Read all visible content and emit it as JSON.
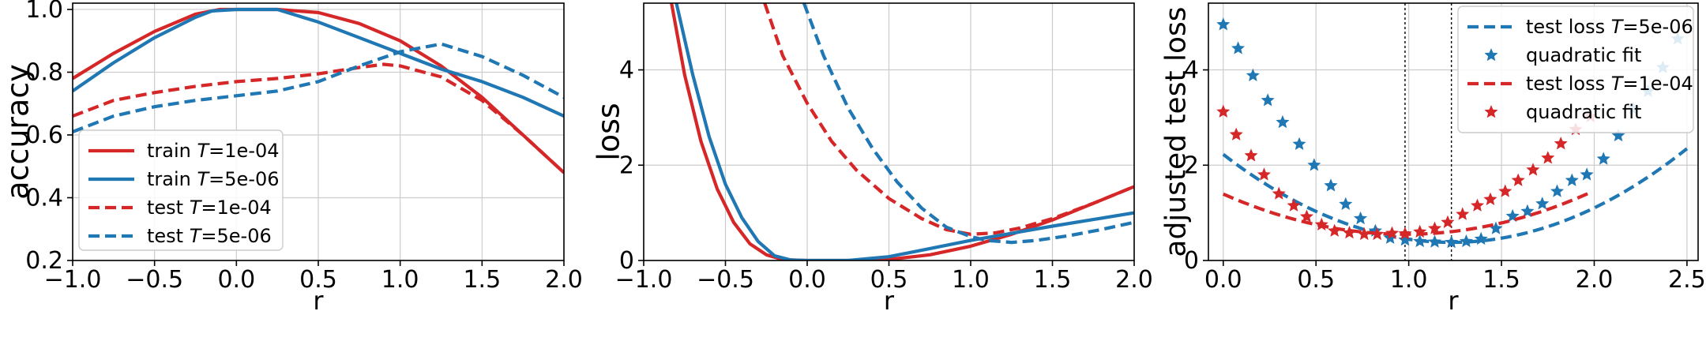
{
  "colors": {
    "red": "#d62728",
    "blue": "#1f77b4",
    "grid": "#cccccc"
  },
  "chart_data": [
    {
      "type": "line",
      "xlabel": "r",
      "ylabel": "accuracy",
      "xlim": [
        -1.0,
        2.0
      ],
      "ylim": [
        0.2,
        1.02
      ],
      "xticks": [
        -1.0,
        -0.5,
        0.0,
        0.5,
        1.0,
        1.5,
        2.0
      ],
      "xtick_labels": [
        "−1.0",
        "−0.5",
        "0.0",
        "0.5",
        "1.0",
        "1.5",
        "2.0"
      ],
      "yticks": [
        0.2,
        0.4,
        0.6,
        0.8,
        1.0
      ],
      "ytick_labels": [
        "0.2",
        "0.4",
        "0.6",
        "0.8",
        "1.0"
      ],
      "grid": true,
      "legend": "lower-left",
      "series": [
        {
          "name": "train T=1e-04",
          "name_pre": "train ",
          "name_italic": "T",
          "name_post": "=1e-04",
          "color": "#d62728",
          "style": "solid",
          "x": [
            -1.0,
            -0.75,
            -0.5,
            -0.25,
            -0.1,
            0.0,
            0.25,
            0.5,
            0.75,
            1.0,
            1.25,
            1.5,
            1.75,
            2.0
          ],
          "y": [
            0.78,
            0.86,
            0.93,
            0.985,
            1.0,
            1.0,
            1.0,
            0.99,
            0.955,
            0.9,
            0.82,
            0.72,
            0.6,
            0.48
          ]
        },
        {
          "name": "train T=5e-06",
          "name_pre": "train ",
          "name_italic": "T",
          "name_post": "=5e-06",
          "color": "#1f77b4",
          "style": "solid",
          "x": [
            -1.0,
            -0.75,
            -0.5,
            -0.25,
            -0.15,
            0.0,
            0.25,
            0.5,
            0.75,
            1.0,
            1.25,
            1.5,
            1.75,
            2.0
          ],
          "y": [
            0.74,
            0.83,
            0.91,
            0.975,
            0.995,
            1.0,
            1.0,
            0.96,
            0.91,
            0.86,
            0.81,
            0.77,
            0.72,
            0.66
          ]
        },
        {
          "name": "test T=1e-04",
          "name_pre": "test ",
          "name_italic": "T",
          "name_post": "=1e-04",
          "color": "#d62728",
          "style": "dashed",
          "x": [
            -1.0,
            -0.75,
            -0.5,
            -0.25,
            0.0,
            0.25,
            0.5,
            0.75,
            0.9,
            1.0,
            1.25,
            1.5,
            1.75,
            2.0
          ],
          "y": [
            0.66,
            0.71,
            0.735,
            0.755,
            0.77,
            0.78,
            0.795,
            0.815,
            0.825,
            0.82,
            0.785,
            0.71,
            0.6,
            0.48
          ]
        },
        {
          "name": "test T=5e-06",
          "name_pre": "test ",
          "name_italic": "T",
          "name_post": "=5e-06",
          "color": "#1f77b4",
          "style": "dashed",
          "x": [
            -1.0,
            -0.75,
            -0.5,
            -0.25,
            0.0,
            0.25,
            0.5,
            0.75,
            1.0,
            1.25,
            1.5,
            1.75,
            2.0
          ],
          "y": [
            0.61,
            0.66,
            0.69,
            0.71,
            0.725,
            0.74,
            0.77,
            0.82,
            0.865,
            0.89,
            0.85,
            0.79,
            0.72
          ]
        }
      ]
    },
    {
      "type": "line",
      "xlabel": "r",
      "ylabel": "loss",
      "xlim": [
        -1.0,
        2.0
      ],
      "ylim": [
        0,
        5.4
      ],
      "xticks": [
        -1.0,
        -0.5,
        0.0,
        0.5,
        1.0,
        1.5,
        2.0
      ],
      "xtick_labels": [
        "−1.0",
        "−0.5",
        "0.0",
        "0.5",
        "1.0",
        "1.5",
        "2.0"
      ],
      "yticks": [
        0,
        2,
        4
      ],
      "ytick_labels": [
        "0",
        "2",
        "4"
      ],
      "grid": true,
      "series": [
        {
          "name": "train T=1e-04",
          "color": "#d62728",
          "style": "solid",
          "x": [
            -0.83,
            -0.75,
            -0.65,
            -0.55,
            -0.45,
            -0.35,
            -0.25,
            -0.15,
            0.0,
            0.25,
            0.5,
            0.75,
            1.0,
            1.25,
            1.5,
            1.75,
            2.0
          ],
          "y": [
            5.4,
            3.9,
            2.5,
            1.5,
            0.8,
            0.35,
            0.12,
            0.02,
            0.0,
            0.0,
            0.02,
            0.12,
            0.3,
            0.55,
            0.85,
            1.2,
            1.55
          ]
        },
        {
          "name": "train T=5e-06",
          "color": "#1f77b4",
          "style": "solid",
          "x": [
            -0.8,
            -0.7,
            -0.6,
            -0.5,
            -0.4,
            -0.3,
            -0.2,
            -0.1,
            0.0,
            0.25,
            0.5,
            0.75,
            1.0,
            1.25,
            1.5,
            1.75,
            2.0
          ],
          "y": [
            5.4,
            3.9,
            2.6,
            1.6,
            0.9,
            0.4,
            0.1,
            0.01,
            0.0,
            0.0,
            0.08,
            0.25,
            0.42,
            0.57,
            0.72,
            0.86,
            1.0
          ]
        },
        {
          "name": "test T=1e-04",
          "color": "#d62728",
          "style": "dashed",
          "x": [
            -0.26,
            -0.15,
            0.0,
            0.15,
            0.3,
            0.5,
            0.7,
            0.85,
            1.0,
            1.15,
            1.3,
            1.5,
            1.75,
            2.0
          ],
          "y": [
            5.4,
            4.3,
            3.3,
            2.5,
            1.9,
            1.3,
            0.88,
            0.65,
            0.55,
            0.58,
            0.68,
            0.88,
            1.2,
            1.55
          ]
        },
        {
          "name": "test T=5e-06",
          "color": "#1f77b4",
          "style": "dashed",
          "x": [
            -0.02,
            0.1,
            0.25,
            0.4,
            0.55,
            0.7,
            0.85,
            1.0,
            1.1,
            1.25,
            1.4,
            1.6,
            1.8,
            2.0
          ],
          "y": [
            5.4,
            4.3,
            3.2,
            2.35,
            1.65,
            1.1,
            0.7,
            0.5,
            0.42,
            0.38,
            0.42,
            0.52,
            0.65,
            0.8
          ]
        }
      ]
    },
    {
      "type": "line",
      "xlabel": "r",
      "ylabel": "adjusted test loss",
      "xlim": [
        -0.08,
        2.56
      ],
      "ylim": [
        0,
        5.4
      ],
      "xticks": [
        0.0,
        0.5,
        1.0,
        1.5,
        2.0,
        2.5
      ],
      "xtick_labels": [
        "0.0",
        "0.5",
        "1.0",
        "1.5",
        "2.0",
        "2.5"
      ],
      "yticks": [
        0,
        2,
        4
      ],
      "ytick_labels": [
        "0",
        "2",
        "4"
      ],
      "grid": true,
      "legend": "top-right",
      "vlines": [
        0.98,
        1.23
      ],
      "series": [
        {
          "name": "test loss T=5e-06",
          "name_pre": "test loss ",
          "name_italic": "T",
          "name_post": "=5e-06",
          "color": "#1f77b4",
          "style": "dashed",
          "marker": "none",
          "quad": {
            "a": 1.22,
            "h": 1.23,
            "k": 0.38
          },
          "x_range": [
            0.0,
            2.5
          ]
        },
        {
          "name": "quadratic fit",
          "color": "#1f77b4",
          "style": "none",
          "marker": "star",
          "x": [
            0.0,
            0.08,
            0.16,
            0.24,
            0.32,
            0.41,
            0.49,
            0.58,
            0.66,
            0.74,
            0.82,
            0.9,
            0.98,
            1.06,
            1.14,
            1.23,
            1.31,
            1.39,
            1.47,
            1.56,
            1.64,
            1.72,
            1.8,
            1.88,
            1.96,
            2.05,
            2.13,
            2.21,
            2.29,
            2.37,
            2.45
          ],
          "y": [
            4.95,
            4.45,
            3.88,
            3.36,
            2.9,
            2.44,
            2.0,
            1.57,
            1.18,
            0.88,
            0.62,
            0.47,
            0.43,
            0.4,
            0.39,
            0.38,
            0.4,
            0.45,
            0.67,
            0.93,
            1.03,
            1.19,
            1.45,
            1.68,
            1.8,
            2.13,
            2.62,
            3.18,
            3.55,
            4.05,
            4.65
          ]
        },
        {
          "name": "test loss T=1e-04",
          "name_pre": "test loss ",
          "name_italic": "T",
          "name_post": "=1e-04",
          "color": "#d62728",
          "style": "dashed",
          "marker": "none",
          "quad": {
            "a": 0.88,
            "h": 0.98,
            "k": 0.55
          },
          "x_range": [
            0.0,
            1.98
          ]
        },
        {
          "name": "quadratic fit",
          "color": "#d62728",
          "style": "none",
          "marker": "star",
          "x": [
            0.0,
            0.07,
            0.15,
            0.22,
            0.3,
            0.38,
            0.45,
            0.53,
            0.6,
            0.68,
            0.76,
            0.83,
            0.91,
            0.98,
            1.06,
            1.14,
            1.21,
            1.29,
            1.37,
            1.44,
            1.52,
            1.59,
            1.67,
            1.75,
            1.82,
            1.9,
            1.98
          ],
          "y": [
            3.12,
            2.64,
            2.2,
            1.8,
            1.4,
            1.15,
            0.92,
            0.75,
            0.62,
            0.58,
            0.55,
            0.55,
            0.57,
            0.56,
            0.6,
            0.67,
            0.8,
            0.97,
            1.15,
            1.28,
            1.45,
            1.68,
            1.9,
            2.15,
            2.45,
            2.75,
            3.02
          ]
        }
      ]
    }
  ]
}
